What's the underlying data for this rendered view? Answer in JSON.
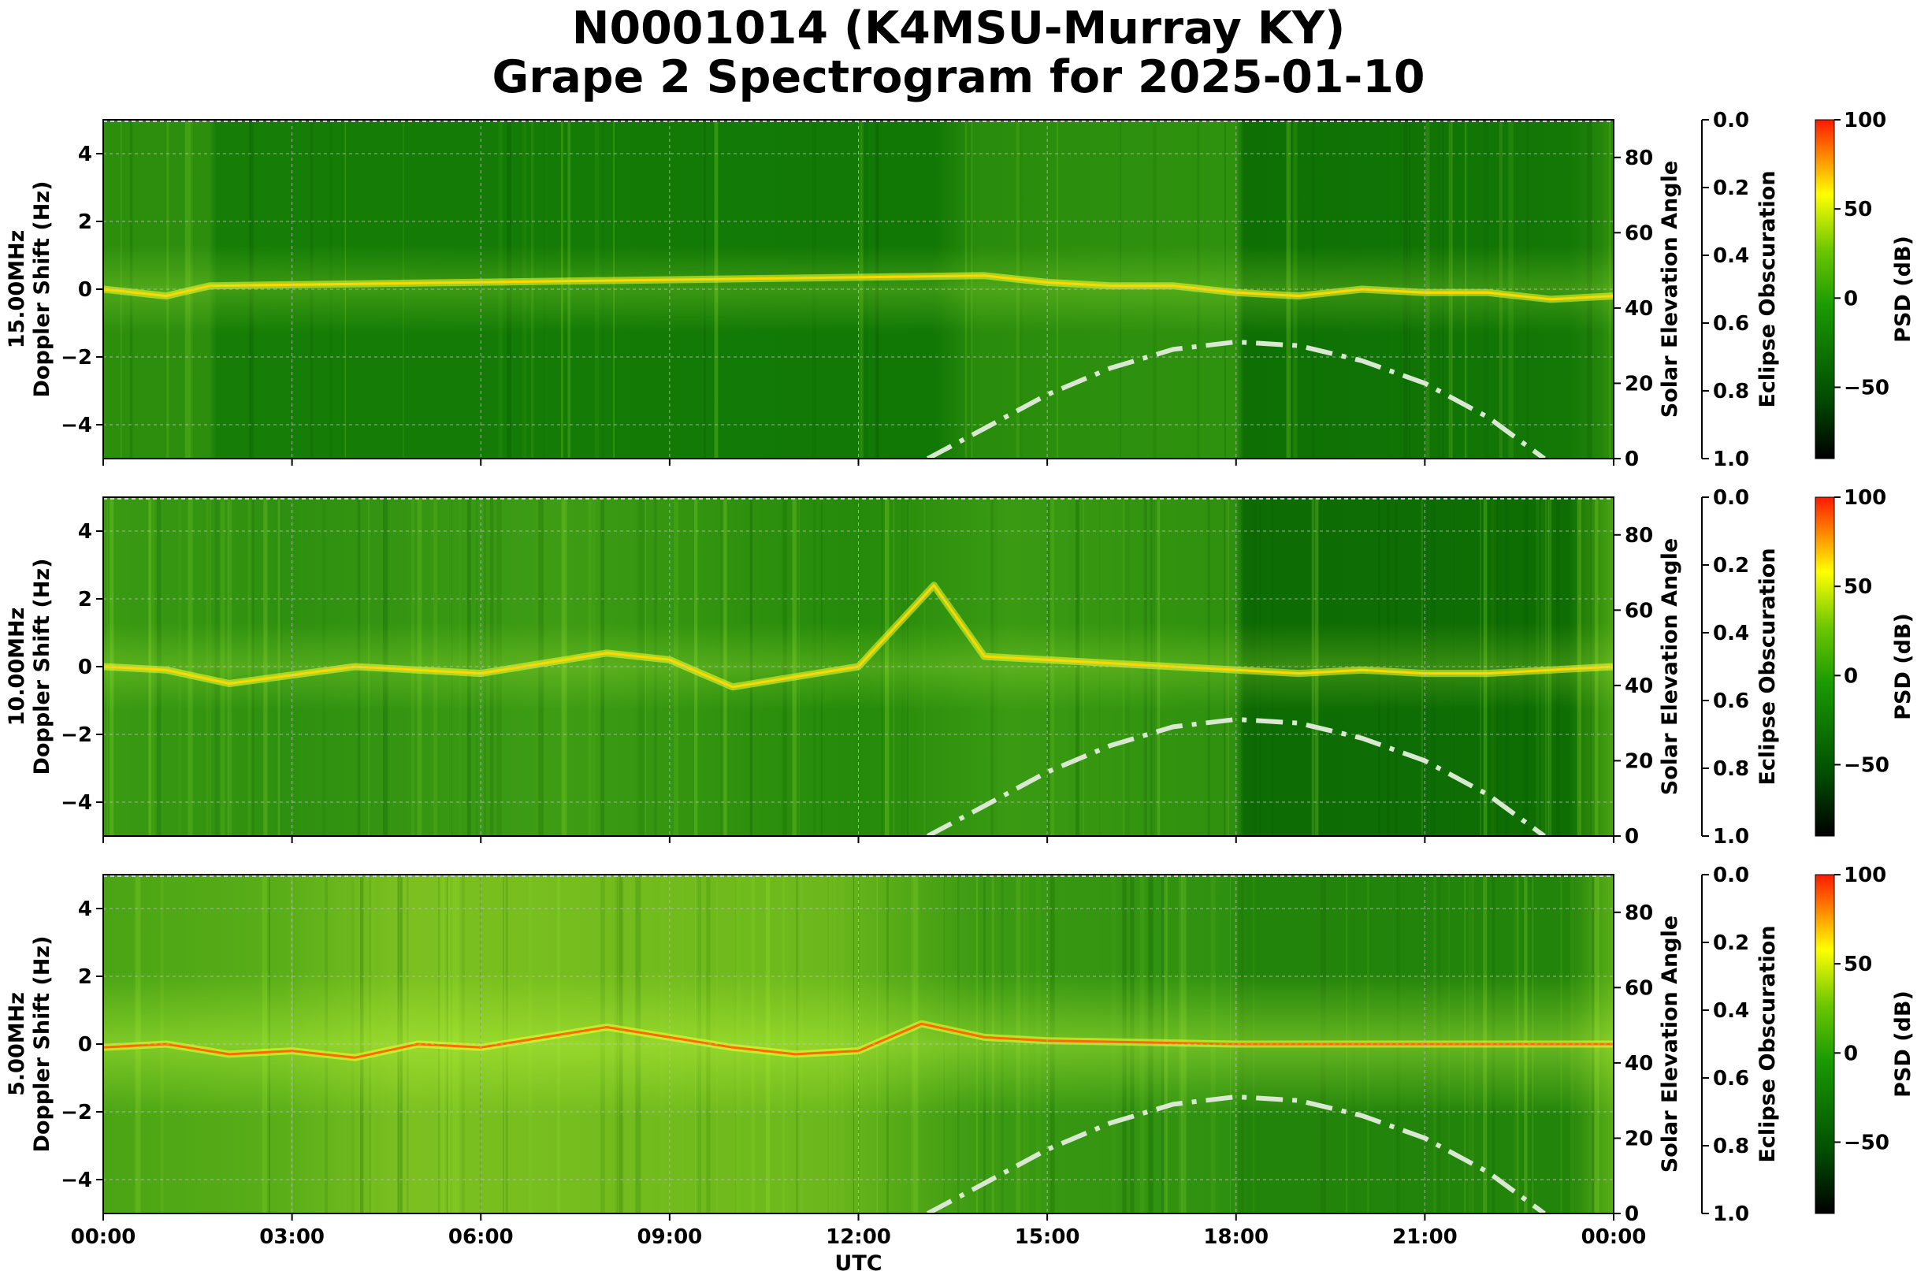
{
  "title": {
    "line1": "N0001014 (K4MSU-Murray KY)",
    "line2": "Grape 2 Spectrogram for 2025-01-10"
  },
  "axes_text": {
    "x_label": "UTC",
    "x_ticks": [
      "00:00",
      "03:00",
      "06:00",
      "09:00",
      "12:00",
      "15:00",
      "18:00",
      "21:00",
      "00:00"
    ],
    "right_label": "Solar Elevation Angle",
    "right_ticks": [
      "0",
      "20",
      "40",
      "60",
      "80"
    ],
    "eclipse_label": "Eclipse Obscuration",
    "eclipse_ticks": [
      "0.0",
      "0.2",
      "0.4",
      "0.6",
      "0.8",
      "1.0"
    ],
    "colorbar_label": "PSD (dB)",
    "colorbar_ticks": [
      "100",
      "50",
      "0",
      "−50"
    ],
    "y_ticks": [
      "4",
      "2",
      "0",
      "−2",
      "−4"
    ]
  },
  "colors": {
    "low": "#000000",
    "mid_low": "#006400",
    "mid": "#22aa00",
    "high": "#ffff00",
    "max": "#ff0000",
    "sun_curve": "#d9e8d0"
  },
  "chart_data": [
    {
      "type": "heatmap",
      "ylabel_freq": "15.00MHz",
      "ylabel": "Doppler Shift (Hz)",
      "ylim": [
        -5,
        5
      ],
      "xlim_hours": [
        0,
        24
      ],
      "colorbar_range_db": [
        -90,
        100
      ],
      "solar_elevation": {
        "hours": [
          13.1,
          14,
          15,
          16,
          17,
          18,
          19,
          20,
          21,
          22,
          22.9
        ],
        "degrees": [
          0,
          8,
          17,
          24,
          29,
          31,
          30,
          26,
          20,
          11,
          0
        ]
      },
      "doppler_trace_hours": [
        0,
        1,
        1.7,
        14,
        15,
        16,
        17,
        18,
        19,
        20,
        21,
        22,
        23,
        24
      ],
      "doppler_trace_hz": [
        0,
        -0.2,
        0.1,
        0.4,
        0.2,
        0.1,
        0.1,
        -0.1,
        -0.2,
        0,
        -0.1,
        -0.1,
        -0.3,
        -0.2
      ]
    },
    {
      "type": "heatmap",
      "ylabel_freq": "10.00MHz",
      "ylabel": "Doppler Shift (Hz)",
      "ylim": [
        -5,
        5
      ],
      "xlim_hours": [
        0,
        24
      ],
      "colorbar_range_db": [
        -90,
        100
      ],
      "solar_elevation": {
        "hours": [
          13.1,
          14,
          15,
          16,
          17,
          18,
          19,
          20,
          21,
          22,
          22.9
        ],
        "degrees": [
          0,
          8,
          17,
          24,
          29,
          31,
          30,
          26,
          20,
          11,
          0
        ]
      },
      "doppler_trace_hours": [
        0,
        1,
        2,
        4,
        6,
        8,
        9,
        10,
        12,
        13.2,
        14,
        15,
        16,
        17,
        18,
        19,
        20,
        21,
        22,
        23,
        24
      ],
      "doppler_trace_hz": [
        0,
        -0.1,
        -0.5,
        0,
        -0.2,
        0.4,
        0.2,
        -0.6,
        0,
        2.4,
        0.3,
        0.2,
        0.1,
        0.0,
        -0.1,
        -0.2,
        -0.1,
        -0.2,
        -0.2,
        -0.1,
        0
      ]
    },
    {
      "type": "heatmap",
      "ylabel_freq": "5.00MHz",
      "ylabel": "Doppler Shift (Hz)",
      "ylim": [
        -5,
        5
      ],
      "xlim_hours": [
        0,
        24
      ],
      "colorbar_range_db": [
        -90,
        100
      ],
      "solar_elevation": {
        "hours": [
          13.1,
          14,
          15,
          16,
          17,
          18,
          19,
          20,
          21,
          22,
          22.9
        ],
        "degrees": [
          0,
          8,
          17,
          24,
          29,
          31,
          30,
          26,
          20,
          11,
          0
        ]
      },
      "doppler_trace_hours": [
        0,
        1,
        2,
        3,
        4,
        5,
        6,
        7,
        8,
        9,
        10,
        11,
        12,
        13,
        14,
        15,
        18,
        24
      ],
      "doppler_trace_hz": [
        -0.1,
        0,
        -0.3,
        -0.2,
        -0.4,
        0,
        -0.1,
        0.2,
        0.5,
        0.2,
        -0.1,
        -0.3,
        -0.2,
        0.6,
        0.2,
        0.1,
        0,
        0
      ]
    }
  ]
}
